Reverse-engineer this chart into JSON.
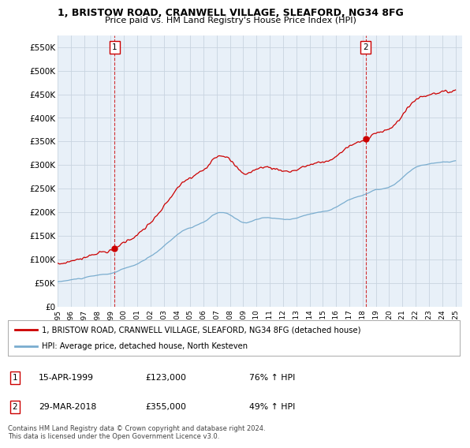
{
  "title": "1, BRISTOW ROAD, CRANWELL VILLAGE, SLEAFORD, NG34 8FG",
  "subtitle": "Price paid vs. HM Land Registry's House Price Index (HPI)",
  "ylabel_ticks": [
    "£0",
    "£50K",
    "£100K",
    "£150K",
    "£200K",
    "£250K",
    "£300K",
    "£350K",
    "£400K",
    "£450K",
    "£500K",
    "£550K"
  ],
  "ytick_vals": [
    0,
    50000,
    100000,
    150000,
    200000,
    250000,
    300000,
    350000,
    400000,
    450000,
    500000,
    550000
  ],
  "ylim": [
    0,
    575000
  ],
  "xlim_left": 1995.0,
  "xlim_right": 2025.5,
  "sale1_year": 1999.29,
  "sale1_price": 123000,
  "sale2_year": 2018.24,
  "sale2_price": 355000,
  "red_color": "#cc0000",
  "blue_color": "#7aadcf",
  "plot_bg_color": "#e8f0f8",
  "legend_line1": "1, BRISTOW ROAD, CRANWELL VILLAGE, SLEAFORD, NG34 8FG (detached house)",
  "legend_line2": "HPI: Average price, detached house, North Kesteven",
  "annotation1": "15-APR-1999",
  "annotation1_price": "£123,000",
  "annotation1_hpi": "76% ↑ HPI",
  "annotation2": "29-MAR-2018",
  "annotation2_price": "£355,000",
  "annotation2_hpi": "49% ↑ HPI",
  "footer": "Contains HM Land Registry data © Crown copyright and database right 2024.\nThis data is licensed under the Open Government Licence v3.0.",
  "background_color": "#ffffff",
  "grid_color": "#c8d4e0"
}
